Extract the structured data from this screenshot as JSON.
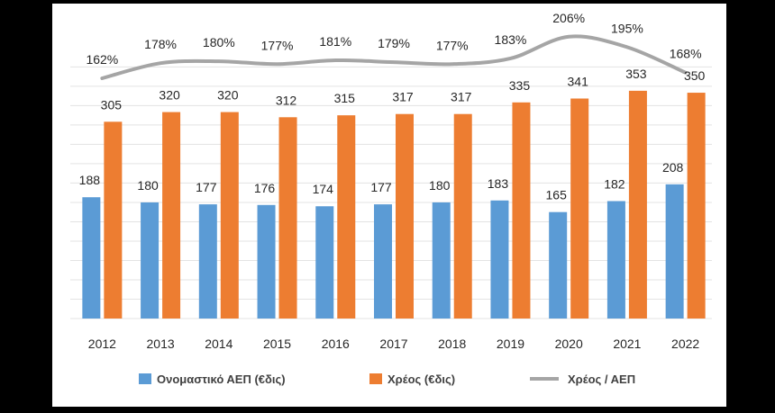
{
  "chart_data": {
    "type": "bar",
    "title": "",
    "xlabel": "",
    "ylabel": "",
    "categories": [
      "2012",
      "2013",
      "2014",
      "2015",
      "2016",
      "2017",
      "2018",
      "2019",
      "2020",
      "2021",
      "2022"
    ],
    "ylim": [
      0,
      400
    ],
    "grid": true,
    "legend_position": "bottom",
    "series": [
      {
        "name": "Ονομαστικό ΑΕΠ (€δις)",
        "kind": "bar",
        "color": "#5B9BD5",
        "values": [
          188,
          180,
          177,
          176,
          174,
          177,
          180,
          183,
          165,
          182,
          208
        ],
        "labels": [
          "188",
          "180",
          "177",
          "176",
          "174",
          "177",
          "180",
          "183",
          "165",
          "182",
          "208"
        ]
      },
      {
        "name": "Χρέος (€δις)",
        "kind": "bar",
        "color": "#ED7D31",
        "values": [
          305,
          320,
          320,
          312,
          315,
          317,
          317,
          335,
          341,
          353,
          350
        ],
        "labels": [
          "305",
          "320",
          "320",
          "312",
          "315",
          "317",
          "317",
          "335",
          "341",
          "353",
          "350"
        ]
      },
      {
        "name": "Χρέος / ΑΕΠ",
        "kind": "line",
        "color": "#A5A5A5",
        "values": [
          162,
          178,
          180,
          177,
          181,
          179,
          177,
          183,
          206,
          195,
          168
        ],
        "labels": [
          "162%",
          "178%",
          "180%",
          "177%",
          "181%",
          "179%",
          "177%",
          "183%",
          "206%",
          "195%",
          "168%"
        ]
      }
    ]
  }
}
